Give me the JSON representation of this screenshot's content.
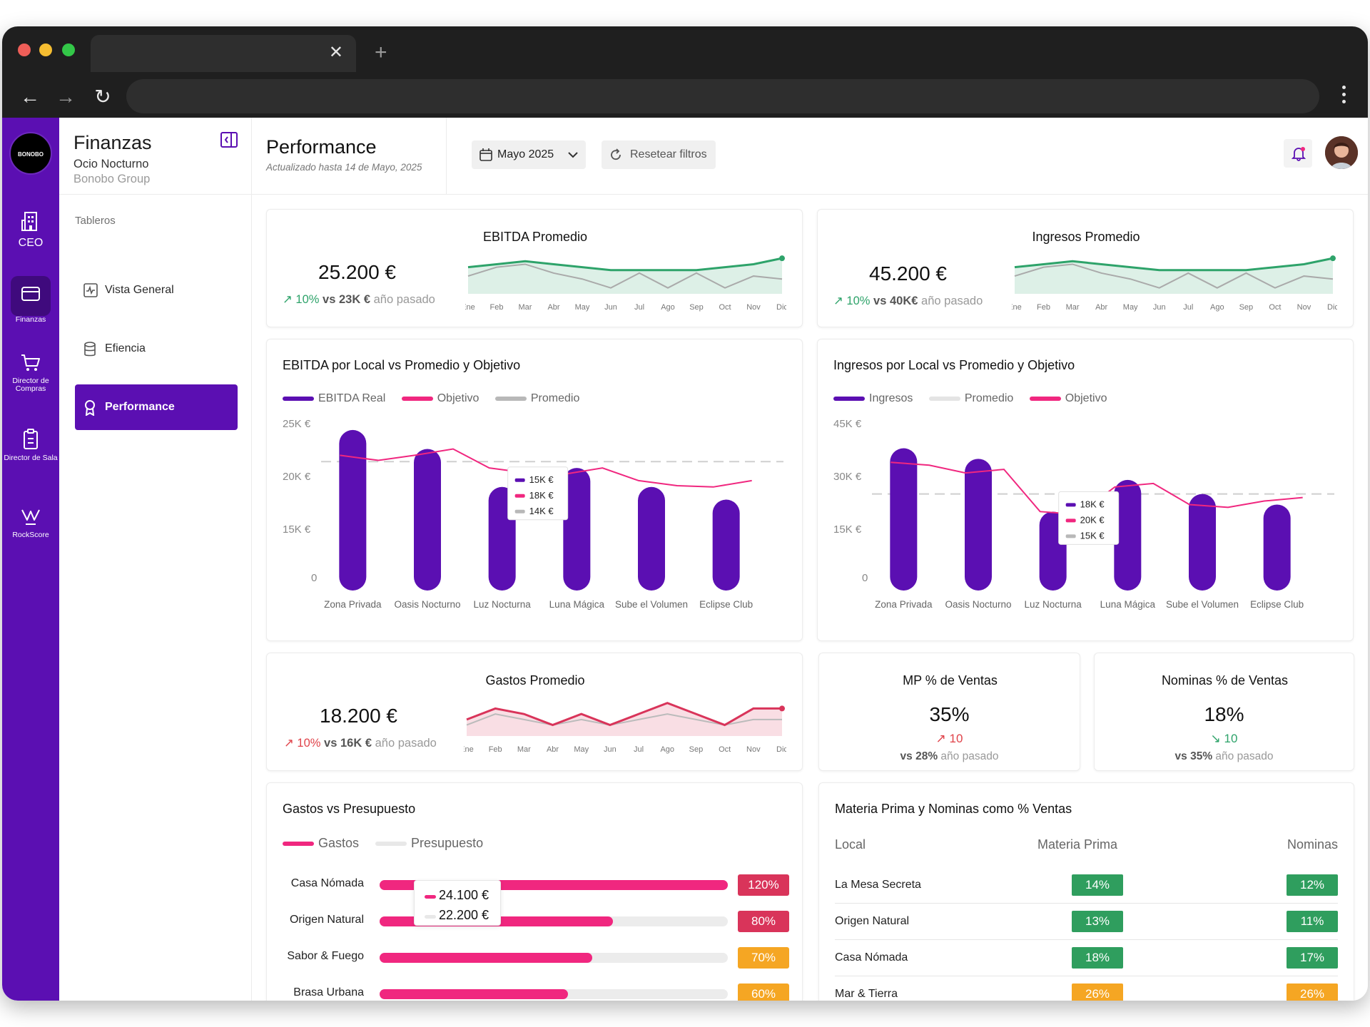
{
  "sidebar_rail": {
    "logo_text": "BONOBO",
    "items": [
      {
        "label": "CEO"
      },
      {
        "label": "Finanzas"
      },
      {
        "label": "Director de Compras"
      },
      {
        "label": "Director de Sala"
      },
      {
        "label": "RockScore"
      }
    ]
  },
  "sidebar": {
    "title": "Finanzas",
    "subtitle": "Ocio Nocturno",
    "org": "Bonobo Group",
    "section": "Tableros",
    "items": [
      {
        "label": "Vista General"
      },
      {
        "label": "Efiencia"
      },
      {
        "label": "Performance"
      }
    ]
  },
  "header": {
    "title": "Performance",
    "updated": "Actualizado hasta 14 de Mayo, 2025",
    "date_filter": "Mayo 2025",
    "reset_label": "Resetear filtros"
  },
  "months": [
    "Ene",
    "Feb",
    "Mar",
    "Abr",
    "May",
    "Jun",
    "Jul",
    "Ago",
    "Sep",
    "Oct",
    "Nov",
    "Dic"
  ],
  "kpis": {
    "ebitda": {
      "title": "EBITDA Promedio",
      "value": "25.200 €",
      "delta": "10%",
      "vs_value": "vs 23K €",
      "vs_suffix": "año pasado"
    },
    "ingresos": {
      "title": "Ingresos Promedio",
      "value": "45.200 €",
      "delta": "10%",
      "vs_value": "vs 40K€",
      "vs_suffix": "año pasado"
    },
    "gastos": {
      "title": "Gastos Promedio",
      "value": "18.200 €",
      "delta": "10%",
      "vs_value": "vs 16K €",
      "vs_suffix": "año pasado"
    },
    "mp": {
      "title": "MP % de Ventas",
      "value": "35%",
      "delta": "10",
      "vs_value": "vs 28%",
      "vs_suffix": "año pasado"
    },
    "nominas": {
      "title": "Nominas % de Ventas",
      "value": "18%",
      "delta": "10",
      "vs_value": "vs 35%",
      "vs_suffix": "año pasado"
    }
  },
  "colors": {
    "primary": "#5b0fb2",
    "pink": "#f0277f",
    "green": "#2ea36a",
    "red": "#d9345a",
    "orange": "#f5a623",
    "badge_green": "#2f9e5e",
    "badge_orange": "#f5a623"
  },
  "charts": {
    "ebitda_local": {
      "title": "EBITDA por Local vs Promedio y Objetivo",
      "legend": [
        "EBITDA Real",
        "Objetivo",
        "Promedio"
      ],
      "y_ticks": [
        "25K €",
        "20K €",
        "15K €",
        "0"
      ],
      "categories": [
        "Zona Privada",
        "Oasis Nocturno",
        "Luz Nocturna",
        "Luna Mágica",
        "Sube el Volumen",
        "Eclipse Club"
      ],
      "tooltip": [
        "15K €",
        "18K €",
        "14K €"
      ]
    },
    "ingresos_local": {
      "title": "Ingresos  por Local vs Promedio y Objetivo",
      "legend": [
        "Ingresos",
        "Promedio",
        "Objetivo"
      ],
      "y_ticks": [
        "45K €",
        "30K €",
        "15K €",
        "0"
      ],
      "categories": [
        "Zona Privada",
        "Oasis Nocturno",
        "Luz Nocturna",
        "Luna Mágica",
        "Sube el Volumen",
        "Eclipse Club"
      ],
      "tooltip": [
        "18K €",
        "20K €",
        "15K €"
      ]
    }
  },
  "gastos_presupuesto": {
    "title": "Gastos vs Presupuesto",
    "legend": [
      "Gastos",
      "Presupuesto"
    ],
    "tooltip": [
      "24.100 €",
      "22.200 €"
    ],
    "rows": [
      {
        "label": "Casa Nómada",
        "pct": "120%"
      },
      {
        "label": "Origen Natural",
        "pct": "80%"
      },
      {
        "label": "Sabor & Fuego",
        "pct": "70%"
      },
      {
        "label": "Brasa Urbana",
        "pct": "60%"
      }
    ]
  },
  "mp_nominas": {
    "title": "Materia Prima y Nominas como % Ventas",
    "headers": [
      "Local",
      "Materia Prima",
      "Nominas"
    ],
    "rows": [
      {
        "local": "La Mesa Secreta",
        "mp": "14%",
        "nom": "12%"
      },
      {
        "local": "Origen Natural",
        "mp": "13%",
        "nom": "11%"
      },
      {
        "local": "Casa Nómada",
        "mp": "18%",
        "nom": "17%"
      },
      {
        "local": "Mar & Tierra",
        "mp": "26%",
        "nom": "26%"
      }
    ]
  },
  "chart_data": [
    {
      "type": "line",
      "title": "EBITDA Promedio",
      "categories": [
        "Ene",
        "Feb",
        "Mar",
        "Abr",
        "May",
        "Jun",
        "Jul",
        "Ago",
        "Sep",
        "Oct",
        "Nov",
        "Dic"
      ],
      "series": [
        {
          "values": [
            24,
            25,
            26,
            25,
            24,
            23,
            23,
            23,
            23,
            24,
            25,
            27
          ]
        },
        {
          "values": [
            21,
            24,
            25,
            22,
            20,
            17,
            22,
            17,
            22,
            17,
            21,
            20
          ]
        }
      ]
    },
    {
      "type": "line",
      "title": "Ingresos Promedio",
      "categories": [
        "Ene",
        "Feb",
        "Mar",
        "Abr",
        "May",
        "Jun",
        "Jul",
        "Ago",
        "Sep",
        "Oct",
        "Nov",
        "Dic"
      ],
      "series": [
        {
          "values": [
            44,
            45,
            46,
            45,
            44,
            43,
            43,
            43,
            43,
            44,
            45,
            47
          ]
        },
        {
          "values": [
            41,
            44,
            45,
            42,
            40,
            37,
            42,
            37,
            42,
            37,
            41,
            40
          ]
        }
      ]
    },
    {
      "type": "line",
      "title": "Gastos Promedio",
      "categories": [
        "Ene",
        "Feb",
        "Mar",
        "Abr",
        "May",
        "Jun",
        "Jul",
        "Ago",
        "Sep",
        "Oct",
        "Nov",
        "Dic"
      ],
      "series": [
        {
          "values": [
            17,
            19,
            18,
            16,
            18,
            16,
            18,
            20,
            18,
            16,
            19,
            19
          ]
        },
        {
          "values": [
            16,
            18,
            17,
            16,
            17,
            16,
            17,
            18,
            17,
            16,
            17,
            17
          ]
        }
      ]
    },
    {
      "type": "bar",
      "title": "EBITDA por Local vs Promedio y Objetivo",
      "categories": [
        "Zona Privada",
        "Oasis Nocturno",
        "Luz Nocturna",
        "Luna Mágica",
        "Sube el Volumen",
        "Eclipse Club"
      ],
      "ylim": [
        0,
        25
      ],
      "series": [
        {
          "name": "EBITDA Real",
          "values": [
            24,
            21,
            15,
            18,
            15,
            13
          ]
        },
        {
          "name": "Objetivo",
          "values": [
            20,
            20,
            18,
            17,
            16,
            15
          ]
        },
        {
          "name": "Promedio",
          "values": [
            19,
            19,
            19,
            19,
            19,
            19
          ]
        }
      ]
    },
    {
      "type": "bar",
      "title": "Ingresos  por Local vs Promedio y Objetivo",
      "categories": [
        "Zona Privada",
        "Oasis Nocturno",
        "Luz Nocturna",
        "Luna Mágica",
        "Sube el Volumen",
        "Eclipse Club"
      ],
      "ylim": [
        0,
        45
      ],
      "series": [
        {
          "name": "Ingresos",
          "values": [
            38,
            35,
            20,
            29,
            25,
            22
          ]
        },
        {
          "name": "Promedio",
          "values": [
            25,
            25,
            25,
            25,
            25,
            25
          ]
        },
        {
          "name": "Objetivo",
          "values": [
            34,
            31,
            20,
            27,
            22,
            23
          ]
        }
      ]
    },
    {
      "type": "bar",
      "title": "Gastos vs Presupuesto",
      "categories": [
        "Casa Nómada",
        "Origen Natural",
        "Sabor & Fuego",
        "Brasa Urbana"
      ],
      "series": [
        {
          "name": "Gastos",
          "values": [
            100,
            67,
            61,
            54
          ]
        }
      ]
    }
  ]
}
